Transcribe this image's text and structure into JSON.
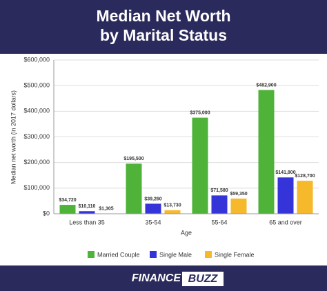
{
  "chart_data": {
    "type": "bar",
    "title": [
      "Median Net Worth",
      "by Marital Status"
    ],
    "y_label": "Median net worth (in 2017 dollars)",
    "x_label": "Age",
    "categories": [
      "Less than 35",
      "35-54",
      "55-64",
      "65 and over"
    ],
    "series": [
      {
        "name": "Married Couple",
        "color": "#4fb33a",
        "values": [
          34720,
          195500,
          375000,
          482900
        ],
        "value_labels": [
          "$34,720",
          "$195,500",
          "$375,000",
          "$482,900"
        ]
      },
      {
        "name": "Single Male",
        "color": "#3434d9",
        "values": [
          10110,
          39260,
          71580,
          141800
        ],
        "value_labels": [
          "$10,110",
          "$39,260",
          "$71,580",
          "$141,800"
        ]
      },
      {
        "name": "Single Female",
        "color": "#f6b92b",
        "values": [
          1305,
          13730,
          59350,
          128700
        ],
        "value_labels": [
          "$1,305",
          "$13,730",
          "$59,350",
          "$128,700"
        ]
      }
    ],
    "ylim": [
      0,
      600000
    ],
    "yticks": [
      {
        "value": 0,
        "label": "$0"
      },
      {
        "value": 100000,
        "label": "$100,000"
      },
      {
        "value": 200000,
        "label": "$200,000"
      },
      {
        "value": 300000,
        "label": "$300,000"
      },
      {
        "value": 400000,
        "label": "$400,000"
      },
      {
        "value": 500000,
        "label": "$500,000"
      },
      {
        "value": 600000,
        "label": "$600,000"
      }
    ],
    "grid": true,
    "legend": "bottom"
  },
  "footer": {
    "brand": "FINANCE",
    "brand_highlight": "BUZZ"
  }
}
